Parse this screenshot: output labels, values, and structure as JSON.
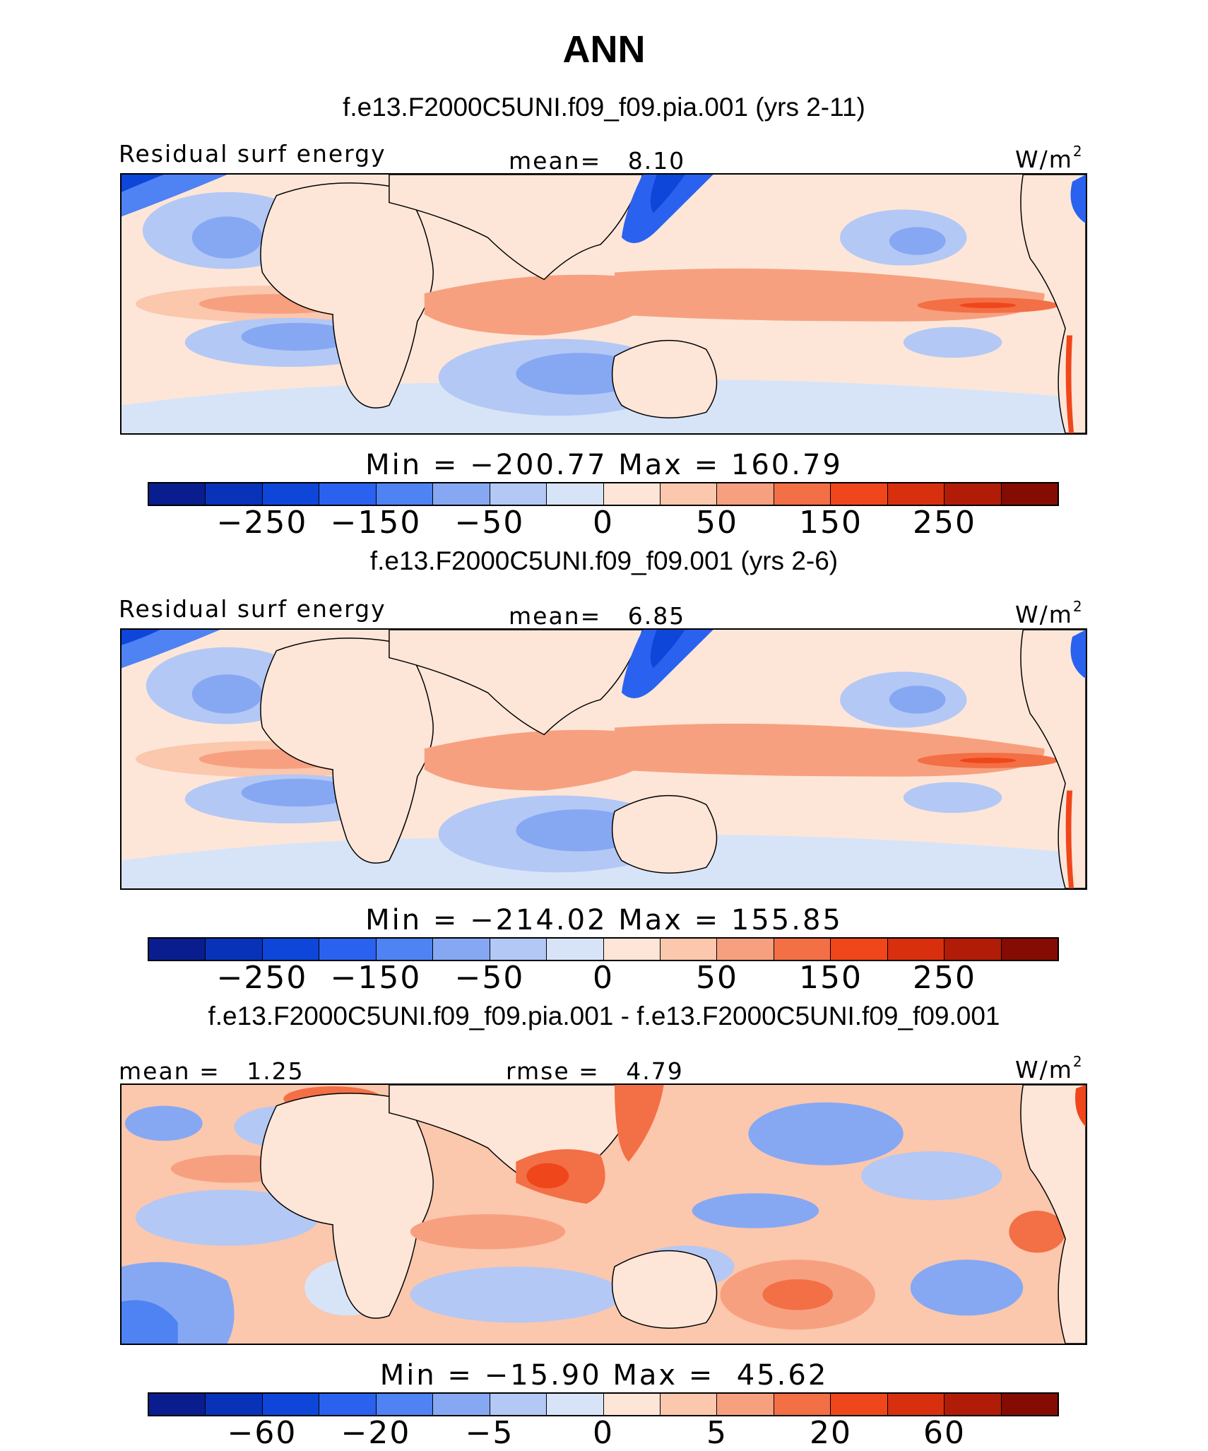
{
  "main_title": "ANN",
  "units_base": "W/m",
  "units_exp": "2",
  "panels": [
    {
      "case_title": "f.e13.F2000C5UNI.f09_f09.pia.001 (yrs 2-11)",
      "left_label": "Residual surf energy",
      "center_label": "mean=   8.10",
      "minmax": "Min = −200.77 Max = 160.79",
      "ticks": [
        "−250",
        "−150",
        "−50",
        "0",
        "50",
        "150",
        "250"
      ]
    },
    {
      "case_title": "f.e13.F2000C5UNI.f09_f09.001 (yrs 2-6)",
      "left_label": "Residual surf energy",
      "center_label": "mean=   6.85",
      "minmax": "Min = −214.02 Max = 155.85",
      "ticks": [
        "−250",
        "−150",
        "−50",
        "0",
        "50",
        "150",
        "250"
      ]
    },
    {
      "case_title": "f.e13.F2000C5UNI.f09_f09.pia.001 - f.e13.F2000C5UNI.f09_f09.001",
      "left_label": "mean =   1.25",
      "center_label": "rmse =   4.79",
      "minmax": "Min = −15.90 Max =  45.62",
      "ticks": [
        "−60",
        "−20",
        "−5",
        "0",
        "5",
        "20",
        "60"
      ]
    }
  ],
  "colorbar_colors": [
    "#0a1d8f",
    "#0832b8",
    "#0d46d9",
    "#2a62ef",
    "#4f82f2",
    "#86a8f3",
    "#b3c8f5",
    "#d7e4f8",
    "#fde6d8",
    "#fbc7ad",
    "#f7a07f",
    "#f36f45",
    "#f0461b",
    "#d8300e",
    "#b01c08",
    "#850c03"
  ]
}
